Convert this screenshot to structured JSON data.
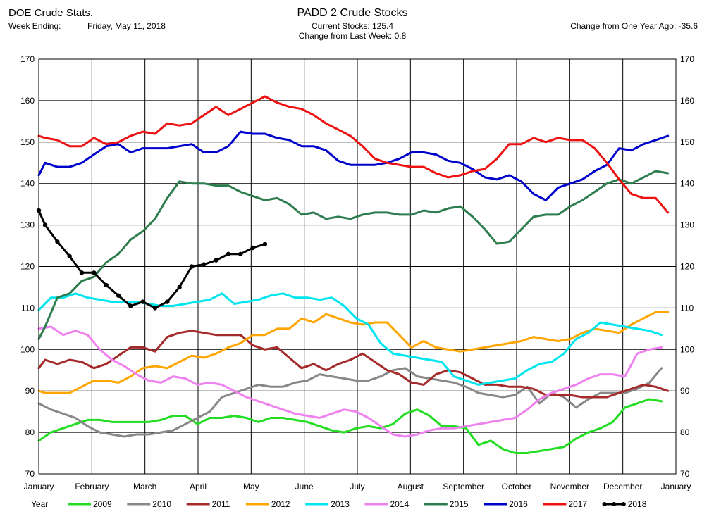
{
  "header": {
    "left_title": "DOE Crude Stats.",
    "week_label": "Week Ending:",
    "week_value": "Friday, May 11, 2018",
    "title": "PADD 2 Crude Stocks",
    "current_stocks": "Current Stocks: 125.4",
    "change_last_week": "Change from Last Week:   0.8",
    "change_one_year": "Change from One Year Ago: -35.6"
  },
  "chart_data": {
    "type": "line",
    "title": "PADD 2 Crude Stocks",
    "ylim": [
      70,
      170
    ],
    "yticks": [
      70,
      80,
      90,
      100,
      110,
      120,
      130,
      140,
      150,
      160,
      170
    ],
    "xlim": [
      0,
      12
    ],
    "month_labels": [
      "January",
      "February",
      "March",
      "April",
      "May",
      "June",
      "July",
      "August",
      "September",
      "October",
      "November",
      "December",
      "January"
    ],
    "grid": true,
    "legend_position": "bottom",
    "legend_title": "Year",
    "series": [
      {
        "name": "2009",
        "color": "#22dd22",
        "markers": false,
        "x": [
          0.0,
          0.23,
          0.46,
          0.69,
          0.92,
          1.15,
          1.38,
          1.61,
          1.84,
          2.07,
          2.3,
          2.53,
          2.76,
          2.99,
          3.22,
          3.45,
          3.68,
          3.91,
          4.14,
          4.37,
          4.6,
          4.83,
          5.06,
          5.29,
          5.52,
          5.75,
          5.98,
          6.21,
          6.44,
          6.67,
          6.9,
          7.13,
          7.36,
          7.59,
          7.82,
          8.05,
          8.28,
          8.51,
          8.74,
          8.97,
          9.2,
          9.43,
          9.66,
          9.89,
          10.12,
          10.35,
          10.58,
          10.81,
          11.04,
          11.27,
          11.5,
          11.73
        ],
        "y": [
          78,
          80,
          81,
          82,
          83,
          83,
          82.5,
          82.5,
          82.5,
          82.5,
          83,
          84,
          84,
          82,
          83.5,
          83.5,
          84,
          83.5,
          82.5,
          83.5,
          83.5,
          83,
          82.5,
          81.5,
          80.5,
          80,
          81,
          81.5,
          81,
          82,
          84.5,
          85.5,
          84,
          81.5,
          81.5,
          81,
          77,
          78,
          76,
          75,
          75,
          75.5,
          76,
          76.5,
          78.5,
          80,
          81,
          82.5,
          86,
          87,
          88,
          87.5
        ]
      },
      {
        "name": "2010",
        "color": "#888888",
        "markers": false,
        "x": [
          0.0,
          0.23,
          0.46,
          0.69,
          0.92,
          1.15,
          1.38,
          1.61,
          1.84,
          2.07,
          2.3,
          2.53,
          2.76,
          2.99,
          3.22,
          3.45,
          3.68,
          3.91,
          4.14,
          4.37,
          4.6,
          4.83,
          5.06,
          5.29,
          5.52,
          5.75,
          5.98,
          6.21,
          6.44,
          6.67,
          6.9,
          7.13,
          7.36,
          7.59,
          7.82,
          8.05,
          8.28,
          8.51,
          8.74,
          8.97,
          9.2,
          9.43,
          9.66,
          9.89,
          10.12,
          10.35,
          10.58,
          10.81,
          11.04,
          11.27,
          11.5,
          11.73
        ],
        "y": [
          87,
          85.5,
          84.5,
          83.5,
          81.5,
          80,
          79.5,
          79,
          79.5,
          79.5,
          80,
          80.5,
          82,
          83.5,
          85,
          88.5,
          89.5,
          90.5,
          91.5,
          91,
          91,
          92,
          92.5,
          94,
          93.5,
          93,
          92.5,
          92.5,
          93.5,
          95,
          95.5,
          93.5,
          93,
          92.5,
          92,
          91,
          89.5,
          89,
          88.5,
          89,
          91,
          87,
          89.5,
          88.5,
          86,
          88,
          89.5,
          89.5,
          89.5,
          90.5,
          92,
          95.5
        ]
      },
      {
        "name": "2011",
        "color": "#a52a2a",
        "markers": false,
        "x": [
          0.0,
          0.12,
          0.35,
          0.58,
          0.81,
          1.04,
          1.27,
          1.5,
          1.73,
          1.96,
          2.19,
          2.42,
          2.65,
          2.88,
          3.11,
          3.34,
          3.57,
          3.8,
          4.03,
          4.26,
          4.49,
          4.72,
          4.95,
          5.18,
          5.41,
          5.64,
          5.87,
          6.1,
          6.33,
          6.56,
          6.79,
          7.02,
          7.25,
          7.48,
          7.71,
          7.94,
          8.17,
          8.4,
          8.63,
          8.86,
          9.09,
          9.32,
          9.55,
          9.78,
          10.01,
          10.24,
          10.47,
          10.7,
          10.93,
          11.16,
          11.39,
          11.62,
          11.85
        ],
        "y": [
          95.5,
          97.5,
          96.5,
          97.5,
          97,
          95.5,
          96.5,
          98.5,
          100.5,
          100.5,
          99.5,
          103,
          104,
          104.5,
          104,
          103.5,
          103.5,
          103.5,
          101,
          100,
          100.5,
          98,
          95.5,
          96.5,
          95,
          96.5,
          97.5,
          99,
          97,
          95,
          94,
          92,
          91.5,
          94,
          95,
          94.5,
          93,
          91.5,
          91.5,
          91,
          91,
          90.5,
          89,
          89,
          89,
          88.5,
          88.5,
          88.5,
          89.5,
          90.5,
          91.5,
          91,
          90
        ]
      },
      {
        "name": "2012",
        "color": "#ffa500",
        "markers": false,
        "x": [
          0.0,
          0.12,
          0.35,
          0.58,
          0.81,
          1.04,
          1.27,
          1.5,
          1.73,
          1.96,
          2.19,
          2.42,
          2.65,
          2.88,
          3.11,
          3.34,
          3.57,
          3.8,
          4.03,
          4.26,
          4.49,
          4.72,
          4.95,
          5.18,
          5.41,
          5.64,
          5.87,
          6.1,
          6.33,
          6.56,
          6.79,
          7.02,
          7.25,
          7.48,
          7.71,
          7.94,
          8.17,
          8.4,
          8.63,
          8.86,
          9.09,
          9.32,
          9.55,
          9.78,
          10.01,
          10.24,
          10.47,
          10.7,
          10.93,
          11.16,
          11.39,
          11.62,
          11.85
        ],
        "y": [
          90,
          89.5,
          89.5,
          89.5,
          91,
          92.5,
          92.5,
          92,
          93.5,
          95.5,
          96,
          95.5,
          97,
          98.5,
          98,
          99,
          100.5,
          101.5,
          103.5,
          103.5,
          105,
          105,
          107.5,
          106.5,
          108.5,
          107.5,
          106.5,
          106,
          106.5,
          106.5,
          103.5,
          100.5,
          102,
          100.5,
          100,
          99.5,
          100,
          100.5,
          101,
          101.5,
          102,
          103,
          102.5,
          102,
          102.5,
          104,
          105,
          104.5,
          104,
          106,
          107.5,
          109,
          109
        ]
      },
      {
        "name": "2013",
        "color": "#00e5ee",
        "markers": false,
        "x": [
          0.0,
          0.23,
          0.46,
          0.69,
          0.92,
          1.15,
          1.38,
          1.61,
          1.84,
          2.07,
          2.3,
          2.53,
          2.76,
          2.99,
          3.22,
          3.45,
          3.68,
          3.91,
          4.14,
          4.37,
          4.6,
          4.83,
          5.06,
          5.29,
          5.52,
          5.75,
          5.98,
          6.21,
          6.44,
          6.67,
          6.9,
          7.13,
          7.36,
          7.59,
          7.82,
          8.05,
          8.28,
          8.51,
          8.74,
          8.97,
          9.2,
          9.43,
          9.66,
          9.89,
          10.12,
          10.35,
          10.58,
          10.81,
          11.04,
          11.27,
          11.5,
          11.73
        ],
        "y": [
          109.5,
          112.5,
          112.5,
          113.5,
          112.5,
          112,
          111.5,
          111.5,
          111.5,
          111,
          110.5,
          110.5,
          111,
          111.5,
          112,
          113.5,
          111,
          111.5,
          112,
          113,
          113.5,
          112.5,
          112.5,
          112,
          112.5,
          110.5,
          107.5,
          106,
          101.5,
          99,
          98.5,
          98,
          97.5,
          97,
          93.5,
          92.5,
          91.5,
          92,
          92.5,
          93,
          95,
          96.5,
          97,
          99,
          102.5,
          104,
          106.5,
          106,
          105.5,
          105,
          104.5,
          103.5
        ]
      },
      {
        "name": "2014",
        "color": "#ee82ee",
        "markers": false,
        "x": [
          0.0,
          0.23,
          0.46,
          0.69,
          0.92,
          1.15,
          1.38,
          1.61,
          1.84,
          2.07,
          2.3,
          2.53,
          2.76,
          2.99,
          3.22,
          3.45,
          3.68,
          3.91,
          4.14,
          4.37,
          4.6,
          4.83,
          5.06,
          5.29,
          5.52,
          5.75,
          5.98,
          6.21,
          6.44,
          6.67,
          6.9,
          7.13,
          7.36,
          7.59,
          7.82,
          8.05,
          8.28,
          8.51,
          8.74,
          8.97,
          9.2,
          9.43,
          9.66,
          9.89,
          10.12,
          10.35,
          10.58,
          10.81,
          11.04,
          11.27,
          11.5,
          11.73
        ],
        "y": [
          105,
          105.5,
          103.5,
          104.5,
          103.5,
          100,
          97.5,
          96,
          94,
          92.5,
          92,
          93.5,
          93,
          91.5,
          92,
          91.5,
          90,
          88.5,
          87.5,
          86.5,
          85.5,
          84.5,
          84,
          83.5,
          84.5,
          85.5,
          85,
          83.5,
          81.5,
          79.5,
          79,
          79.5,
          80.5,
          81,
          81,
          81.5,
          82,
          82.5,
          83,
          83.5,
          85.5,
          88,
          89.5,
          90.5,
          91.5,
          93,
          94,
          94,
          93.5,
          99,
          100,
          100.5
        ]
      },
      {
        "name": "2015",
        "color": "#2e7d4f",
        "markers": false,
        "x": [
          0.0,
          0.12,
          0.35,
          0.58,
          0.81,
          1.04,
          1.27,
          1.5,
          1.73,
          1.96,
          2.19,
          2.42,
          2.65,
          2.88,
          3.11,
          3.34,
          3.57,
          3.8,
          4.03,
          4.26,
          4.49,
          4.72,
          4.95,
          5.18,
          5.41,
          5.64,
          5.87,
          6.1,
          6.33,
          6.56,
          6.79,
          7.02,
          7.25,
          7.48,
          7.71,
          7.94,
          8.17,
          8.4,
          8.63,
          8.86,
          9.09,
          9.32,
          9.55,
          9.78,
          10.01,
          10.24,
          10.47,
          10.7,
          10.93,
          11.16,
          11.39,
          11.62,
          11.85
        ],
        "y": [
          102.5,
          105.5,
          112.5,
          113.5,
          116.5,
          117.5,
          121,
          123,
          126.5,
          128.5,
          131.5,
          136.5,
          140.5,
          140,
          140,
          139.5,
          139.5,
          138,
          137,
          136,
          136.5,
          135,
          132.5,
          133,
          131.5,
          132,
          131.5,
          132.5,
          133,
          133,
          132.5,
          132.5,
          133.5,
          133,
          134,
          134.5,
          132,
          129,
          125.5,
          126,
          129,
          132,
          132.5,
          132.5,
          134.5,
          136,
          138,
          140,
          141,
          140,
          141.5,
          143,
          142.5
        ]
      },
      {
        "name": "2016",
        "color": "#0000cc",
        "markers": false,
        "x": [
          0.0,
          0.12,
          0.35,
          0.58,
          0.81,
          1.04,
          1.27,
          1.5,
          1.73,
          1.96,
          2.19,
          2.42,
          2.65,
          2.88,
          3.11,
          3.34,
          3.57,
          3.8,
          4.03,
          4.26,
          4.49,
          4.72,
          4.95,
          5.18,
          5.41,
          5.64,
          5.87,
          6.1,
          6.33,
          6.56,
          6.79,
          7.02,
          7.25,
          7.48,
          7.71,
          7.94,
          8.17,
          8.4,
          8.63,
          8.86,
          9.09,
          9.32,
          9.55,
          9.78,
          10.01,
          10.24,
          10.47,
          10.7,
          10.93,
          11.16,
          11.39,
          11.62,
          11.85
        ],
        "y": [
          142,
          145,
          144,
          144,
          145,
          147,
          149,
          149.5,
          147.5,
          148.5,
          148.5,
          148.5,
          149,
          149.5,
          147.5,
          147.5,
          149,
          152.5,
          152,
          152,
          151,
          150.5,
          149,
          149,
          148,
          145.5,
          144.5,
          144.5,
          144.5,
          145,
          146,
          147.5,
          147.5,
          147,
          145.5,
          145,
          143.5,
          141.5,
          141,
          142,
          140.5,
          137.5,
          136,
          139,
          140,
          141,
          143,
          144.5,
          148.5,
          148,
          149.5,
          150.5,
          151.5
        ]
      },
      {
        "name": "2017",
        "color": "#ee1111",
        "markers": false,
        "x": [
          0.0,
          0.12,
          0.35,
          0.58,
          0.81,
          1.04,
          1.27,
          1.5,
          1.73,
          1.96,
          2.19,
          2.42,
          2.65,
          2.88,
          3.11,
          3.34,
          3.57,
          3.8,
          4.03,
          4.26,
          4.49,
          4.72,
          4.95,
          5.18,
          5.41,
          5.64,
          5.87,
          6.1,
          6.33,
          6.56,
          6.79,
          7.02,
          7.25,
          7.48,
          7.71,
          7.94,
          8.17,
          8.4,
          8.63,
          8.86,
          9.09,
          9.32,
          9.55,
          9.78,
          10.01,
          10.24,
          10.47,
          10.7,
          10.93,
          11.16,
          11.39,
          11.62,
          11.85
        ],
        "y": [
          151.5,
          151,
          150.5,
          149,
          149,
          151,
          149.5,
          150,
          151.5,
          152.5,
          152,
          154.5,
          154,
          154.5,
          156.5,
          158.5,
          156.5,
          158,
          159.5,
          161,
          159.5,
          158.5,
          158,
          156.5,
          154.5,
          153,
          151.5,
          149,
          146,
          145,
          144.5,
          144,
          144,
          142.5,
          141.5,
          142,
          143,
          143.5,
          146,
          149.5,
          149.5,
          151,
          150,
          151,
          150.5,
          150.5,
          148.5,
          145,
          141,
          137.5,
          136.5,
          136.5,
          133
        ]
      },
      {
        "name": "2018",
        "color": "#000000",
        "markers": true,
        "x": [
          0.0,
          0.12,
          0.35,
          0.58,
          0.81,
          1.04,
          1.27,
          1.5,
          1.73,
          1.96,
          2.19,
          2.42,
          2.65,
          2.88,
          3.11,
          3.34,
          3.57,
          3.8,
          4.03,
          4.26
        ],
        "y": [
          133.5,
          130,
          126,
          122.5,
          118.5,
          118.5,
          115.5,
          113,
          110.5,
          111.5,
          110,
          111.5,
          115,
          120,
          120.5,
          121.5,
          123,
          123,
          124.5,
          125.4
        ]
      }
    ]
  }
}
